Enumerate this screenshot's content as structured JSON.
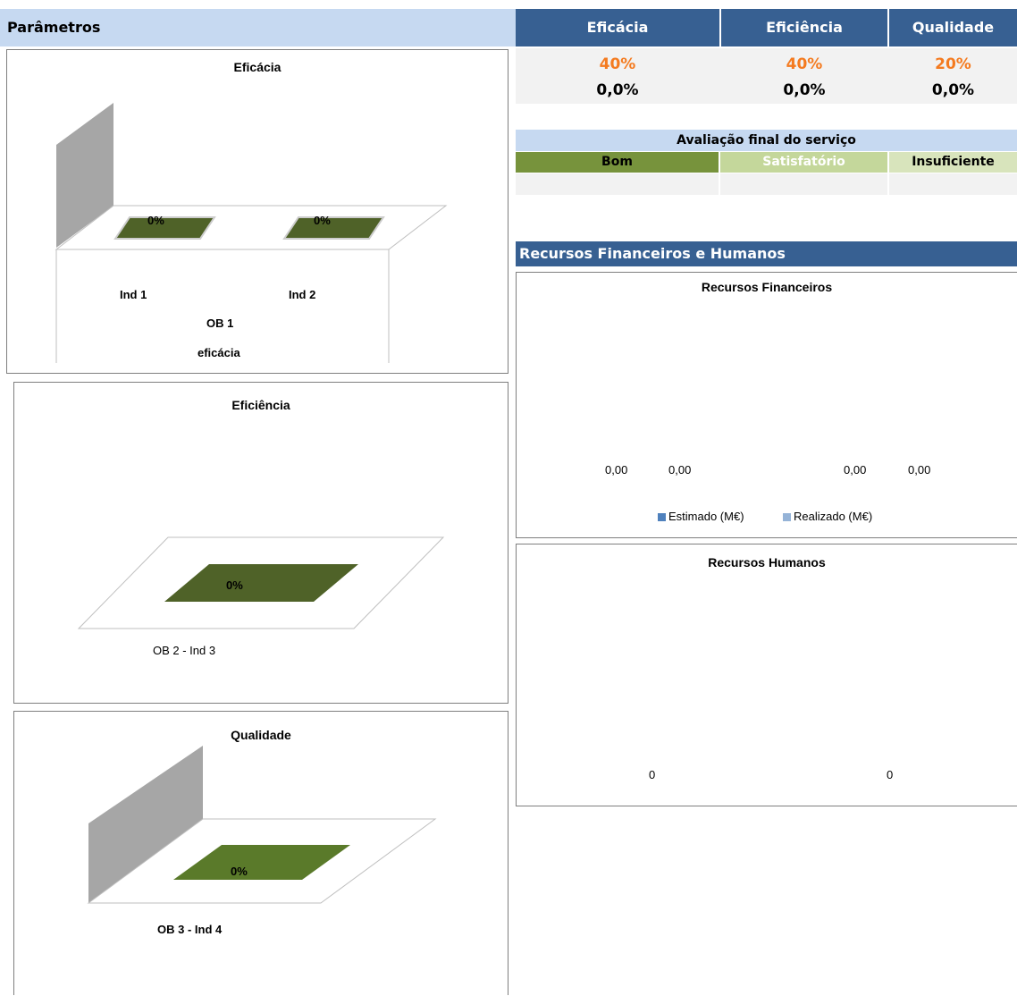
{
  "header": {
    "parametros": "Parâmetros",
    "columns": [
      "Eficácia",
      "Eficiência",
      "Qualidade"
    ],
    "weights": [
      "40%",
      "40%",
      "20%"
    ],
    "results": [
      "0,0%",
      "0,0%",
      "0,0%"
    ]
  },
  "evaluation": {
    "title": "Avaliação final do serviço",
    "levels": [
      "Bom",
      "Satisfatório",
      "Insuficiente"
    ],
    "colors": [
      "#77933c",
      "#c4d79b",
      "#d8e4bc"
    ]
  },
  "resources": {
    "section_title": "Recursos Financeiros e Humanos"
  },
  "chart_data": [
    {
      "id": "eficacia",
      "type": "bar",
      "title": "Eficácia",
      "categories": [
        "Ind 1",
        "Ind 2"
      ],
      "group_label": "OB 1",
      "xlabel": "eficácia",
      "values": [
        0,
        0
      ],
      "data_labels": [
        "0%",
        "0%"
      ],
      "color": "#4f6228"
    },
    {
      "id": "eficiencia",
      "type": "bar",
      "title": "Eficiência",
      "categories": [
        "OB 2 - Ind 3"
      ],
      "values": [
        0
      ],
      "data_labels": [
        "0%"
      ],
      "color": "#4f6228"
    },
    {
      "id": "qualidade",
      "type": "bar",
      "title": "Qualidade",
      "categories": [
        "OB 3 - Ind 4"
      ],
      "values": [
        0
      ],
      "data_labels": [
        "0%"
      ],
      "color": "#5a7a2a"
    },
    {
      "id": "recursos-financeiros",
      "type": "bar",
      "title": "Recursos Financeiros",
      "series": [
        {
          "name": "Estimado (M€)",
          "values": [
            0,
            0
          ],
          "labels": [
            "0,00",
            "0,00"
          ],
          "color": "#4f81bd"
        },
        {
          "name": "Realizado (M€)",
          "values": [
            0,
            0
          ],
          "labels": [
            "0,00",
            "0,00"
          ],
          "color": "#95b3d7"
        }
      ],
      "legend": "bottom"
    },
    {
      "id": "recursos-humanos",
      "type": "bar",
      "title": "Recursos Humanos",
      "values": [
        0,
        0
      ],
      "labels": [
        "0",
        "0"
      ]
    }
  ]
}
